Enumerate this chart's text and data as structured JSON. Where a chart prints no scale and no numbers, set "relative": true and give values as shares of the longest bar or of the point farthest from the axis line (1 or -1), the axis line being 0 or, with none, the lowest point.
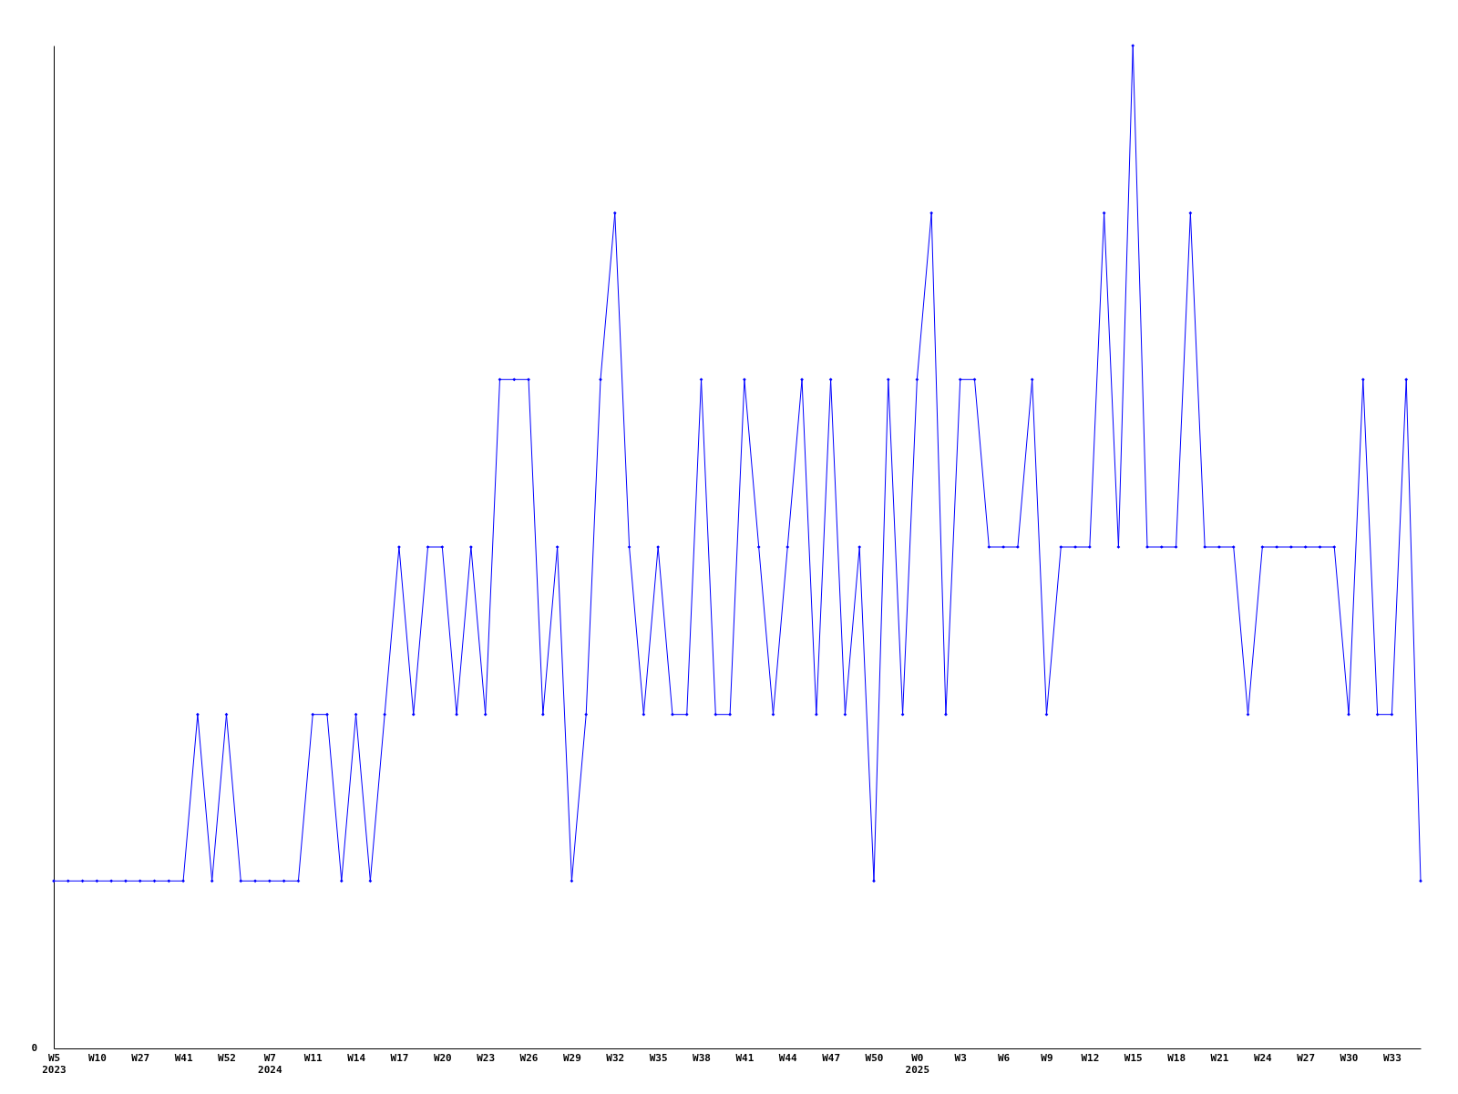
{
  "chart_data": {
    "type": "line",
    "relative": true,
    "marker": "diamond",
    "line_style": "solid",
    "grid": false,
    "annotations": [
      "0"
    ],
    "categories": [
      "W5\n2023",
      null,
      null,
      "W10",
      null,
      null,
      "W27",
      null,
      null,
      "W41",
      null,
      null,
      "W52",
      null,
      null,
      "W7\n2024",
      null,
      null,
      "W11",
      null,
      null,
      "W14",
      null,
      null,
      "W17",
      null,
      null,
      "W20",
      null,
      null,
      "W23",
      null,
      null,
      "W26",
      null,
      null,
      "W29",
      null,
      null,
      "W32",
      null,
      null,
      "W35",
      null,
      null,
      "W38",
      null,
      null,
      "W41",
      null,
      null,
      "W44",
      null,
      null,
      "W47",
      null,
      null,
      "W50",
      null,
      null,
      "W0\n2025",
      null,
      null,
      "W3",
      null,
      null,
      "W6",
      null,
      null,
      "W9",
      null,
      null,
      "W12",
      null,
      null,
      "W15",
      null,
      null,
      "W18",
      null,
      null,
      "W21",
      null,
      null,
      "W24",
      null,
      null,
      "W27",
      null,
      null,
      "W30",
      null,
      null,
      "W33",
      null,
      null
    ],
    "series": [
      {
        "color": "#0000ff",
        "values": [
          0.167,
          0.167,
          0.167,
          0.167,
          0.167,
          0.167,
          0.167,
          0.167,
          0.167,
          0.167,
          0.333,
          0.167,
          0.333,
          0.167,
          0.167,
          0.167,
          0.167,
          0.167,
          0.333,
          0.333,
          0.167,
          0.333,
          0.167,
          0.333,
          0.5,
          0.333,
          0.5,
          0.5,
          0.333,
          0.5,
          0.333,
          0.667,
          0.667,
          0.667,
          0.333,
          0.5,
          0.167,
          0.333,
          0.667,
          0.833,
          0.5,
          0.333,
          0.5,
          0.333,
          0.333,
          0.667,
          0.333,
          0.333,
          0.667,
          0.5,
          0.333,
          0.5,
          0.667,
          0.333,
          0.667,
          0.333,
          0.5,
          0.167,
          0.667,
          0.333,
          0.667,
          0.833,
          0.333,
          0.667,
          0.667,
          0.5,
          0.5,
          0.5,
          0.667,
          0.333,
          0.5,
          0.5,
          0.5,
          0.833,
          0.5,
          1,
          0.5,
          0.5,
          0.5,
          0.833,
          0.5,
          0.5,
          0.5,
          0.333,
          0.5,
          0.5,
          0.5,
          0.5,
          0.5,
          0.5,
          0.333,
          0.667,
          0.333,
          0.333,
          0.667,
          0.167
        ]
      }
    ]
  }
}
